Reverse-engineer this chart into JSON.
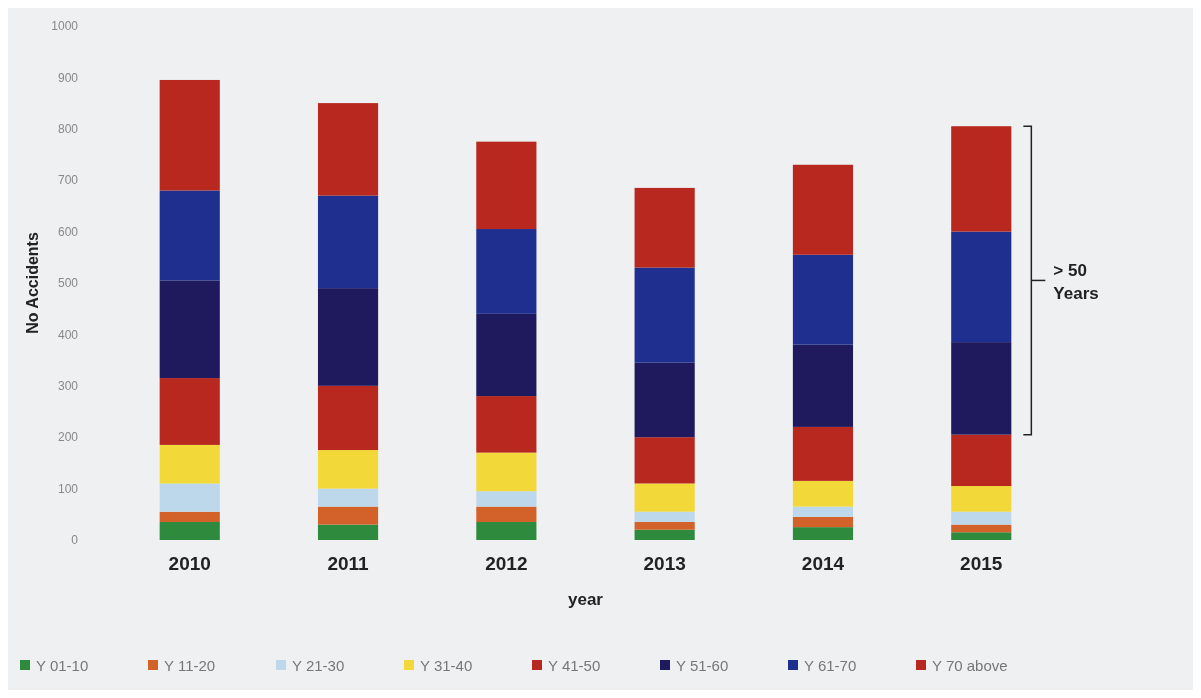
{
  "chart_data": {
    "type": "bar",
    "stacked": true,
    "xlabel": "year",
    "ylabel": "No Accidents",
    "categories": [
      "2010",
      "2011",
      "2012",
      "2013",
      "2014",
      "2015"
    ],
    "series": [
      {
        "name": "Y 01-10",
        "color": "#2e8b3e",
        "values": [
          35,
          30,
          35,
          20,
          25,
          15
        ]
      },
      {
        "name": "Y 11-20",
        "color": "#d2622a",
        "values": [
          20,
          35,
          30,
          15,
          20,
          15
        ]
      },
      {
        "name": "Y 21-30",
        "color": "#bcd8ea",
        "values": [
          55,
          35,
          30,
          20,
          20,
          25
        ]
      },
      {
        "name": "Y 31-40",
        "color": "#f3d83a",
        "values": [
          75,
          75,
          75,
          55,
          50,
          50
        ]
      },
      {
        "name": "Y 41-50",
        "color": "#b8281e",
        "values": [
          130,
          125,
          110,
          90,
          105,
          100
        ]
      },
      {
        "name": "Y 51-60",
        "color": "#1f1a5e",
        "values": [
          190,
          190,
          160,
          145,
          160,
          180
        ]
      },
      {
        "name": "Y 61-70",
        "color": "#1f2f8f",
        "values": [
          175,
          180,
          165,
          185,
          175,
          215
        ]
      },
      {
        "name": "Y 70 above",
        "color": "#b8281e",
        "values": [
          215,
          180,
          170,
          155,
          175,
          205
        ]
      }
    ],
    "ylim": [
      0,
      1000
    ],
    "yticks": [
      0,
      100,
      200,
      300,
      400,
      500,
      600,
      700,
      800,
      900,
      1000
    ],
    "grid": false,
    "legend": "bottom",
    "annotations": [
      "> 50 Years"
    ]
  }
}
